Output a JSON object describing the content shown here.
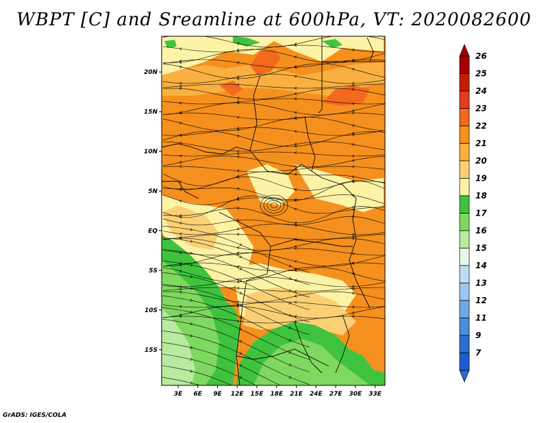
{
  "title": "WBPT [C] and Sreamline at 600hPa, VT: 2020082600",
  "credit": "GrADS: IGES/COLA",
  "map": {
    "lat_labels": [
      "20N",
      "15N",
      "10N",
      "5N",
      "EQ",
      "5S",
      "10S",
      "15S"
    ],
    "lat_values": [
      20,
      15,
      10,
      5,
      0,
      -5,
      -10,
      -15
    ],
    "lon_labels": [
      "3E",
      "6E",
      "9E",
      "12E",
      "15E",
      "18E",
      "21E",
      "24E",
      "27E",
      "30E",
      "33E"
    ],
    "lon_values": [
      3,
      6,
      9,
      12,
      15,
      18,
      21,
      24,
      27,
      30,
      33
    ],
    "lon_range": [
      0.5,
      34.5
    ],
    "lat_range": [
      -19.5,
      24.5
    ]
  },
  "colorbar": {
    "levels": [
      "26",
      "25",
      "24",
      "23",
      "22",
      "21",
      "20",
      "19",
      "18",
      "17",
      "16",
      "15",
      "14",
      "13",
      "12",
      "11",
      "9",
      "7"
    ],
    "colors": [
      "#a30000",
      "#c81e00",
      "#e33c1e",
      "#f26a1e",
      "#f5901e",
      "#f9b041",
      "#fbd074",
      "#fdf3a6",
      "#3fc33f",
      "#7fd85f",
      "#b8eaa0",
      "#e6f6e6",
      "#bfdcf4",
      "#9ac8ef",
      "#6fa9e6",
      "#4b8edc",
      "#2b6ed2",
      "#1f5ccf"
    ],
    "top_color": "#a30000",
    "bottom_color": "#2a67d0"
  },
  "palette": {
    "orange": "#f5901e",
    "light_orange": "#f9b041",
    "deep_orange": "#f26a1e",
    "yellow": "#fdf3a6",
    "tan": "#fbd074",
    "green": "#3fc33f",
    "mid_green": "#7fd85f",
    "light_green": "#b8eaa0"
  }
}
